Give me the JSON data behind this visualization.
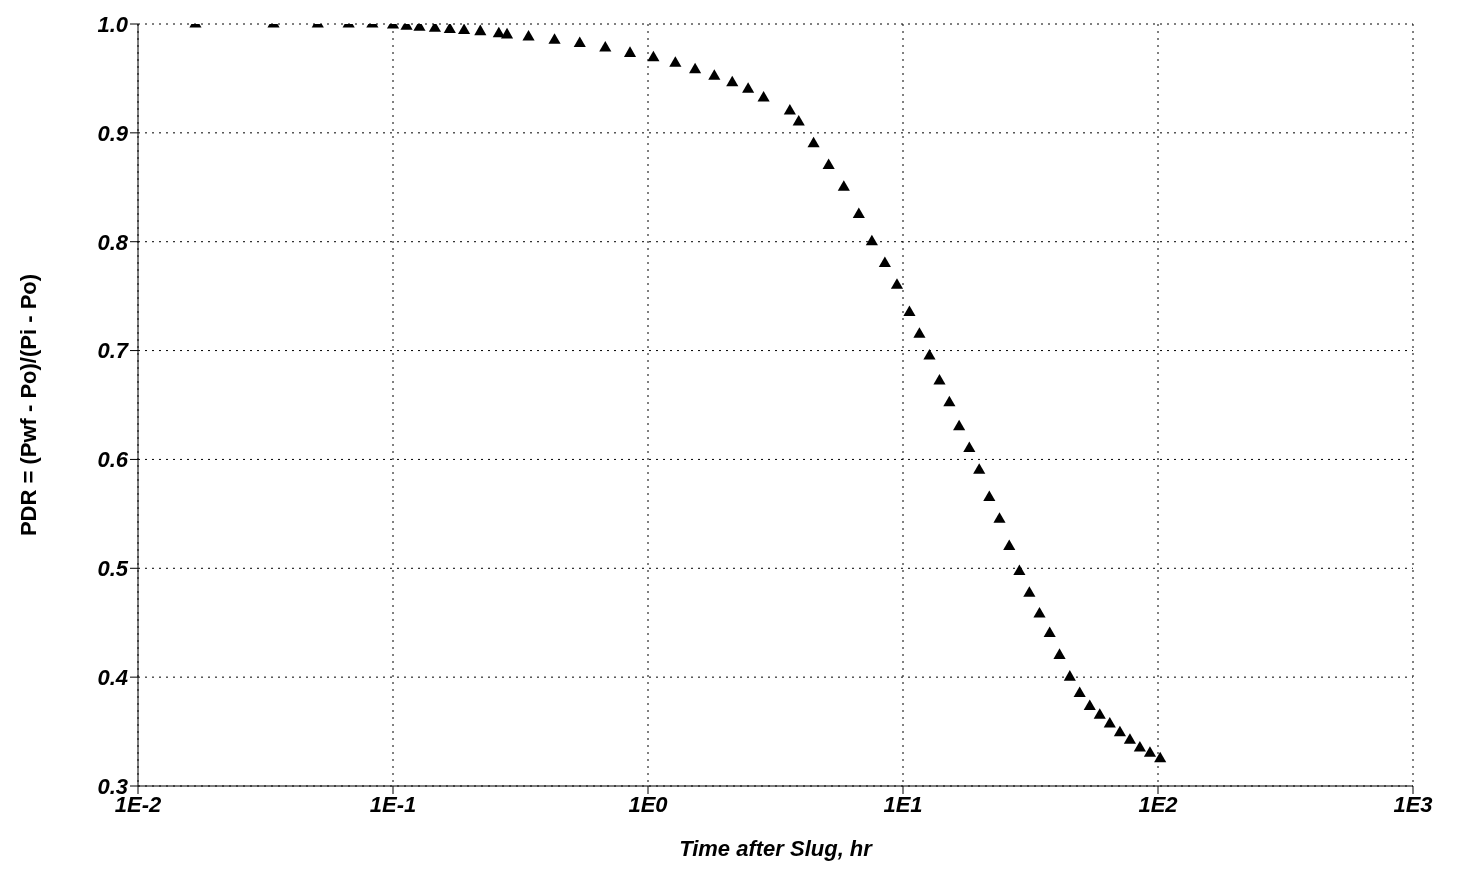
{
  "chart_data": {
    "type": "scatter",
    "xlabel": "Time after Slug, hr",
    "ylabel": "PDR = (Pwf - Po)/(Pi - Po)",
    "log": "x",
    "grid": true,
    "marker": "triangle",
    "legend": false,
    "xlim": [
      0.01,
      1000
    ],
    "xticks": [
      {
        "value": 0.01,
        "label": "1E-2"
      },
      {
        "value": 0.1,
        "label": "1E-1"
      },
      {
        "value": 1,
        "label": "1E0"
      },
      {
        "value": 10,
        "label": "1E1"
      },
      {
        "value": 100,
        "label": "1E2"
      },
      {
        "value": 1000,
        "label": "1E3"
      }
    ],
    "ylim": [
      0.3,
      1.0
    ],
    "yticks": [
      0.3,
      0.4,
      0.5,
      0.6,
      0.7,
      0.8,
      0.9,
      {
        "value": 1.0,
        "label": "1.0"
      }
    ],
    "series": [
      {
        "color": "#000000",
        "x": [
          0.0168,
          0.034,
          0.0507,
          0.067,
          0.083,
          0.1,
          0.113,
          0.127,
          0.146,
          0.167,
          0.19,
          0.22,
          0.26,
          0.28,
          0.34,
          0.43,
          0.54,
          0.68,
          0.85,
          1.05,
          1.28,
          1.53,
          1.82,
          2.14,
          2.47,
          2.84,
          3.6,
          3.9,
          4.46,
          5.11,
          5.86,
          6.71,
          7.55,
          8.49,
          9.47,
          10.6,
          11.6,
          12.7,
          13.9,
          15.2,
          16.6,
          18.2,
          19.9,
          21.8,
          23.9,
          26.1,
          28.6,
          31.3,
          34.3,
          37.6,
          41.1,
          45.1,
          49.3,
          54.0,
          59.1,
          64.7,
          70.9,
          77.6,
          84.9,
          93.0,
          102
        ],
        "values": [
          1.0,
          1.0,
          1.0,
          1.0,
          1.0,
          0.999,
          0.998,
          0.997,
          0.996,
          0.995,
          0.994,
          0.993,
          0.991,
          0.99,
          0.988,
          0.985,
          0.982,
          0.978,
          0.973,
          0.969,
          0.964,
          0.958,
          0.952,
          0.946,
          0.94,
          0.932,
          0.92,
          0.91,
          0.89,
          0.87,
          0.85,
          0.825,
          0.8,
          0.78,
          0.76,
          0.735,
          0.715,
          0.695,
          0.672,
          0.652,
          0.63,
          0.61,
          0.59,
          0.565,
          0.545,
          0.52,
          0.497,
          0.477,
          0.458,
          0.44,
          0.42,
          0.4,
          0.385,
          0.373,
          0.365,
          0.357,
          0.349,
          0.342,
          0.335,
          0.33,
          0.325
        ]
      }
    ]
  }
}
